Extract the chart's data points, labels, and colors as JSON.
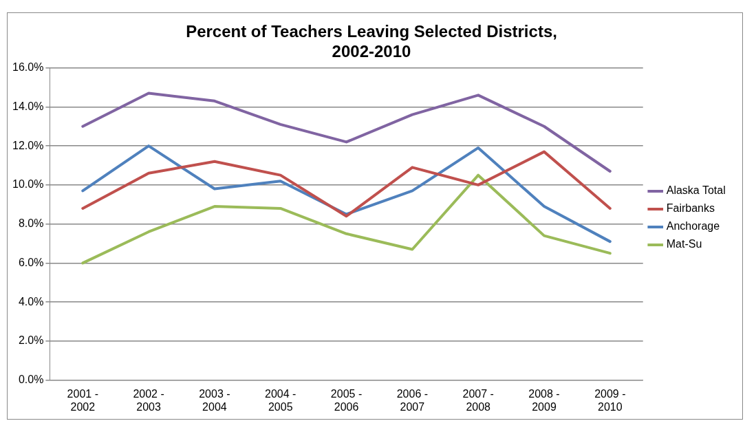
{
  "chart_data": {
    "type": "line",
    "title": "Percent of Teachers Leaving Selected Districts, 2002-2010",
    "categories": [
      "2001 - 2002",
      "2002 - 2003",
      "2003 - 2004",
      "2004 - 2005",
      "2005 - 2006",
      "2006 - 2007",
      "2007 - 2008",
      "2008 - 2009",
      "2009 - 2010"
    ],
    "series": [
      {
        "name": "Alaska Total",
        "color": "#8064a2",
        "values": [
          13.0,
          14.7,
          14.3,
          13.1,
          12.2,
          13.6,
          14.6,
          13.0,
          10.7
        ]
      },
      {
        "name": "Fairbanks",
        "color": "#c0504d",
        "values": [
          8.8,
          10.6,
          11.2,
          10.5,
          8.4,
          10.9,
          10.0,
          11.7,
          8.8
        ]
      },
      {
        "name": "Anchorage",
        "color": "#4f81bd",
        "values": [
          9.7,
          12.0,
          9.8,
          10.2,
          8.5,
          9.7,
          11.9,
          8.9,
          7.1
        ]
      },
      {
        "name": "Mat-Su",
        "color": "#9bbb59",
        "values": [
          6.0,
          7.6,
          8.9,
          8.8,
          7.5,
          6.7,
          10.5,
          7.4,
          6.5
        ]
      }
    ],
    "ylim": [
      0,
      16
    ],
    "yticks": [
      {
        "value": 0,
        "label": "0.0%"
      },
      {
        "value": 2,
        "label": "2.0%"
      },
      {
        "value": 4,
        "label": "4.0%"
      },
      {
        "value": 6,
        "label": "6.0%"
      },
      {
        "value": 8,
        "label": "8.0%"
      },
      {
        "value": 10,
        "label": "10.0%"
      },
      {
        "value": 12,
        "label": "12.0%"
      },
      {
        "value": 14,
        "label": "14.0%"
      },
      {
        "value": 16,
        "label": "16.0%"
      }
    ],
    "grid": "y",
    "legend": "right",
    "marker": "none",
    "line_style": "solid"
  }
}
